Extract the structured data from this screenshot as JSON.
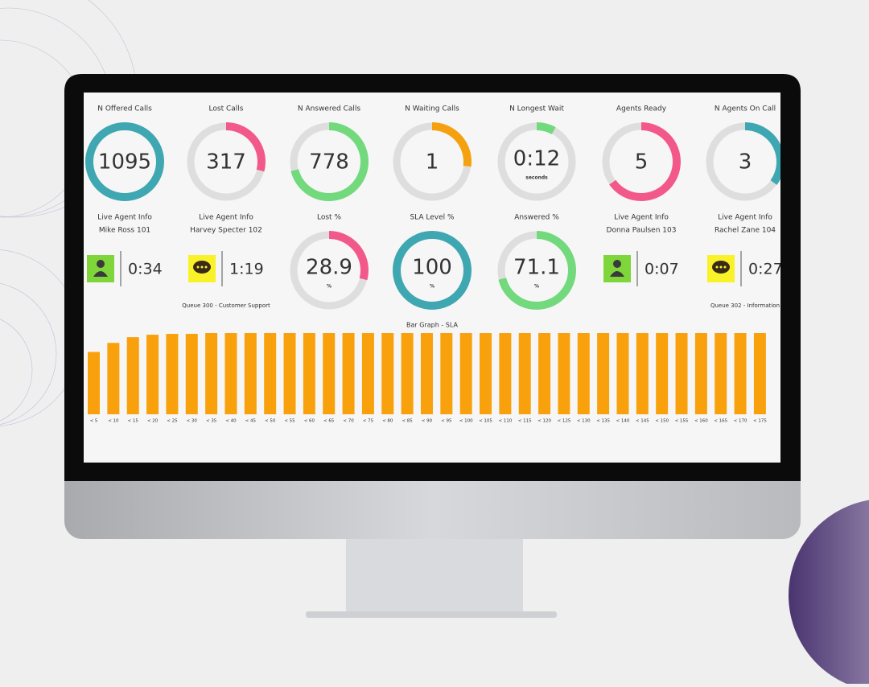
{
  "gauges": [
    {
      "title": "N Offered Calls",
      "value": "1095",
      "arc": 1.0,
      "color": "#3fa7b1"
    },
    {
      "title": "Lost Calls",
      "value": "317",
      "arc": 0.29,
      "color": "#f2598a"
    },
    {
      "title": "N Answered Calls",
      "value": "778",
      "arc": 0.71,
      "color": "#72d97c"
    },
    {
      "title": "N Waiting Calls",
      "value": "1",
      "arc": 0.27,
      "color": "#f5a10f"
    },
    {
      "title": "N Longest Wait",
      "value": "0:12",
      "unit": "seconds",
      "arc": 0.08,
      "color": "#72d97c"
    },
    {
      "title": "Agents Ready",
      "value": "5",
      "arc": 0.65,
      "color": "#f2598a"
    },
    {
      "title": "N Agents On Call",
      "value": "3",
      "arc": 0.35,
      "color": "#3fa7b1"
    },
    {
      "title": "Lost %",
      "value": "28.9",
      "unit": "%",
      "arc": 0.29,
      "color": "#f2598a"
    },
    {
      "title": "SLA Level %",
      "value": "100",
      "unit": "%",
      "arc": 1.0,
      "color": "#3fa7b1"
    },
    {
      "title": "Answered %",
      "value": "71.1",
      "unit": "%",
      "arc": 0.71,
      "color": "#72d97c"
    }
  ],
  "agents": [
    {
      "title": "Live Agent Info",
      "name": "Mike Ross 101",
      "time": "0:34",
      "icon": "person"
    },
    {
      "title": "Live Agent Info",
      "name": "Harvey Specter 102",
      "time": "1:19",
      "icon": "chat",
      "queue": "Queue 300 - Customer Support"
    },
    {
      "title": "Live Agent Info",
      "name": "Donna Paulsen 103",
      "time": "0:07",
      "icon": "person"
    },
    {
      "title": "Live Agent Info",
      "name": "Rachel Zane 104",
      "time": "0:27",
      "icon": "chat",
      "queue": "Queue 302 - Information"
    }
  ],
  "chart_data": {
    "type": "bar",
    "title": "Bar Graph - SLA",
    "color": "#f9a10c",
    "categories": [
      "< 5",
      "< 10",
      "< 15",
      "< 20",
      "< 25",
      "< 30",
      "< 35",
      "< 40",
      "< 45",
      "< 50",
      "< 55",
      "< 60",
      "< 65",
      "< 70",
      "< 75",
      "< 80",
      "< 85",
      "< 90",
      "< 95",
      "< 100",
      "< 105",
      "< 110",
      "< 115",
      "< 120",
      "< 125",
      "< 130",
      "< 135",
      "< 140",
      "< 145",
      "< 150",
      "< 155",
      "< 160",
      "< 165",
      "< 170",
      "< 175"
    ],
    "values": [
      76,
      87,
      94,
      97,
      98,
      98,
      99,
      99,
      99,
      99,
      99,
      99,
      99,
      99,
      99,
      99,
      99,
      99,
      99,
      99,
      99,
      99,
      99,
      99,
      99,
      99,
      99,
      99,
      99,
      99,
      99,
      99,
      99,
      99,
      99
    ],
    "ylim": [
      0,
      100
    ]
  }
}
